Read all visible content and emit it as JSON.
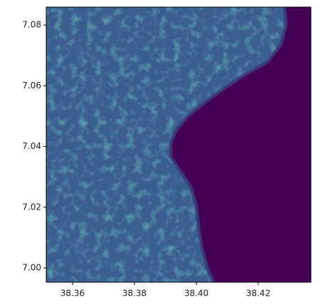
{
  "chart_data": {
    "type": "image",
    "xlim": [
      38.3515,
      38.437
    ],
    "ylim": [
      6.9953,
      7.0859
    ],
    "xticks": [
      38.36,
      38.38,
      {
        "value": 38.4,
        "label": "38.40"
      },
      38.42
    ],
    "yticks": [
      {
        "value": 7,
        "label": "7.00"
      },
      7.02,
      7.04,
      7.06,
      7.08
    ]
  }
}
